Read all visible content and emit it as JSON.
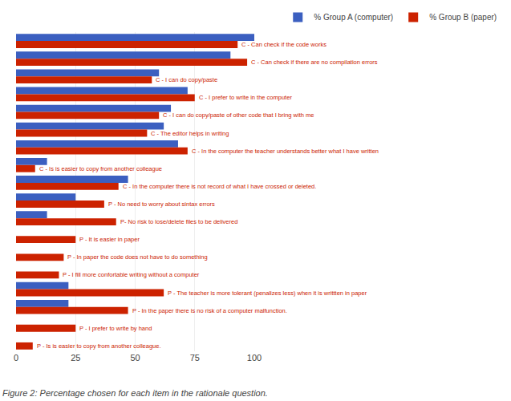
{
  "chart_data": {
    "type": "bar",
    "orientation": "horizontal",
    "title": "Figure 2: Percentage chosen for each item in the rationale question.",
    "categories": [
      "C - Can check if the code works",
      "C - Can check if there are no compilation errors",
      "C - I can do copy/paste",
      "C - I prefer to write in the computer",
      "C - I can do copy/paste of other code that I bring with me",
      "C - The editor helps in writing",
      "C - In the computer the teacher understands better what I have written",
      "C - Is is easier to copy from another colleague",
      "C - In the computer there is not record of what I have crossed or deleted.",
      "P - No need to worry about sintax errors",
      "P- No risk to lose/delete files to be delivered",
      "P - It is easier in paper",
      "P - In paper the code does not have to do something",
      "P - I fill more confortable writing without a computer",
      "P - The teacher is more tolerant (penalizes less) when it is writtten in paper",
      "P - In the paper there is no risk of a computer malfunction.",
      "P - I prefer to write by hand",
      "P - Is is easier to copy from another colleague."
    ],
    "series": [
      {
        "name": "% Group A (computer)",
        "color": "#3b5fc0",
        "values": [
          100,
          90,
          60,
          72,
          65,
          62,
          68,
          13,
          47,
          25,
          13,
          0,
          0,
          0,
          22,
          22,
          0,
          0
        ]
      },
      {
        "name": "% Group B (paper)",
        "color": "#cc2200",
        "values": [
          93,
          97,
          57,
          75,
          60,
          55,
          72,
          8,
          43,
          37,
          42,
          25,
          20,
          18,
          62,
          47,
          25,
          7
        ]
      }
    ],
    "xlim": [
      0,
      100
    ],
    "xticks": [
      0,
      25,
      50,
      75,
      100
    ],
    "grid": true,
    "legend": "upper right",
    "tick_labels": "x"
  }
}
